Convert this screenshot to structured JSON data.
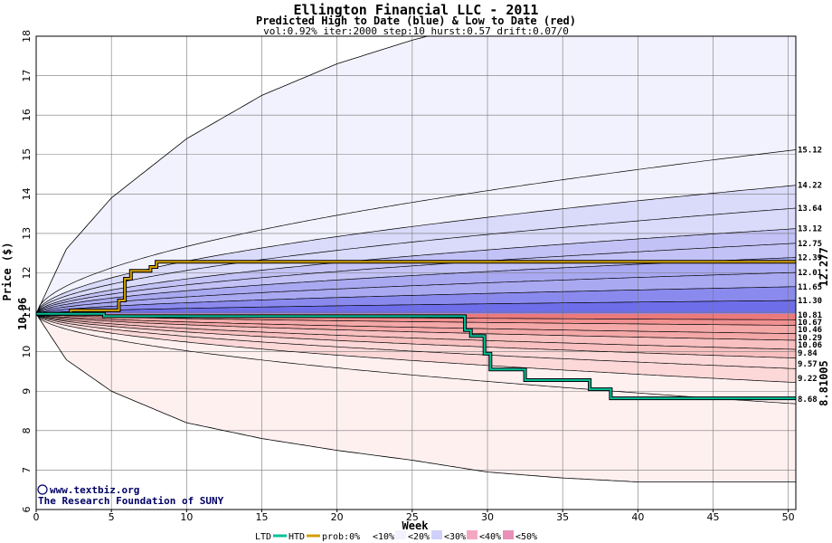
{
  "chart_data": {
    "type": "area",
    "title": "Ellington Financial LLC - 2011",
    "subtitle": "Predicted High to Date (blue) &  Low to Date (red)",
    "params": "vol:0.92% iter:2000 step:10 hurst:0.57 drift:0.07/0",
    "xlabel": "Week",
    "ylabel": "Price ($)",
    "xlim": [
      0,
      50.5
    ],
    "ylim": [
      6,
      18
    ],
    "x_ticks": [
      0,
      5,
      10,
      15,
      20,
      25,
      30,
      35,
      40,
      45,
      50
    ],
    "y_ticks": [
      6,
      7,
      8,
      9,
      10,
      11,
      12,
      13,
      14,
      15,
      16,
      17,
      18
    ],
    "start_price": "10.96",
    "start_value": 10.96,
    "high_final_label": "12.277",
    "low_final_label": "8.81005",
    "high_quantiles_end": [
      15.12,
      14.22,
      13.64,
      13.12,
      12.75,
      12.39,
      12.01,
      11.65,
      11.3
    ],
    "high_quantile_labels": [
      "15.12",
      "14.22",
      "13.64",
      "13.12",
      "12.75",
      "12.39",
      "12.01",
      "11.65",
      "11.30"
    ],
    "low_quantiles_end": [
      10.81,
      10.67,
      10.46,
      10.29,
      10.06,
      9.84,
      9.57,
      9.22,
      8.68
    ],
    "low_quantile_labels": [
      "10.81",
      "10.67",
      "10.46",
      "10.29",
      "10.06",
      "9.84",
      "9.57",
      "9.22",
      "8.68"
    ],
    "high_envelope": {
      "x": [
        0,
        2,
        5,
        10,
        15,
        20,
        25,
        26,
        50.5
      ],
      "values": [
        10.96,
        12.6,
        13.9,
        15.4,
        16.5,
        17.3,
        17.9,
        18.0,
        18.0
      ]
    },
    "low_envelope": {
      "x": [
        0,
        2,
        5,
        10,
        15,
        20,
        25,
        30,
        35,
        40,
        50.5
      ],
      "values": [
        10.96,
        9.8,
        9.0,
        8.2,
        7.8,
        7.5,
        7.25,
        6.95,
        6.8,
        6.7,
        6.7
      ]
    },
    "series": [
      {
        "name": "HTD",
        "x": [
          0,
          2.3,
          2.3,
          5.5,
          5.5,
          5.9,
          5.9,
          6.3,
          6.3,
          7.6,
          7.6,
          8.0,
          8.0,
          50.5
        ],
        "values": [
          10.96,
          10.96,
          11.05,
          11.05,
          11.3,
          11.3,
          11.85,
          11.85,
          12.05,
          12.05,
          12.15,
          12.15,
          12.28,
          12.28
        ]
      },
      {
        "name": "LTD",
        "x": [
          0,
          4.5,
          4.5,
          28.5,
          28.5,
          28.9,
          28.9,
          29.8,
          29.8,
          30.2,
          30.2,
          32.5,
          32.5,
          36.8,
          36.8,
          38.2,
          38.2,
          50.5
        ],
        "values": [
          10.96,
          10.96,
          10.9,
          10.9,
          10.55,
          10.55,
          10.4,
          10.4,
          9.95,
          9.95,
          9.55,
          9.55,
          9.28,
          9.28,
          9.05,
          9.05,
          8.82,
          8.82
        ]
      }
    ],
    "legend_position": "bottom"
  },
  "credit": {
    "site": "www.textbiz.org",
    "org": "The Research Foundation of SUNY"
  },
  "legend": {
    "ltd": "LTD",
    "htd": "HTD",
    "prob": "prob:0%",
    "bands": [
      "<10%",
      "<20%",
      "<30%",
      "<40%",
      "<50%"
    ]
  },
  "colors": {
    "band_blue": [
      "#f2f2fe",
      "#dadafa",
      "#c2c2f6",
      "#a9a9f2",
      "#8a8aee",
      "#6e6eea"
    ],
    "band_red": [
      "#fff0f0",
      "#fcd8d8",
      "#f8c0c0",
      "#f4a8a8",
      "#f09090",
      "#ec7a7a"
    ],
    "htd_line": "#d4a000",
    "ltd_line": "#00c09a",
    "label_high": "#a07800",
    "label_low": "#009060"
  }
}
